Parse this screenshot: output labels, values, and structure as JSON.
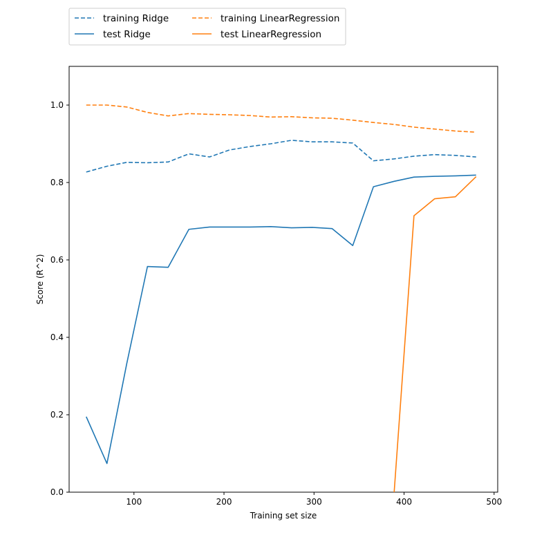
{
  "chart_data": {
    "type": "line",
    "xlabel": "Training set size",
    "ylabel": "Score (R^2)",
    "xlim": [
      28,
      504
    ],
    "ylim": [
      0,
      1.1
    ],
    "xticks": [
      100,
      200,
      300,
      400,
      500
    ],
    "yticks": [
      0.0,
      0.2,
      0.4,
      0.6,
      0.8,
      1.0
    ],
    "ytick_labels": [
      "0.0",
      "0.2",
      "0.4",
      "0.6",
      "0.8",
      "1.0"
    ],
    "legend_placement": "top-left, above the plot, 2 columns",
    "colors": {
      "Ridge": "#1f77b4",
      "LinearRegression": "#ff7f0e"
    },
    "series": [
      {
        "name": "training Ridge",
        "color": "#1f77b4",
        "dashed": true,
        "x": [
          47,
          70,
          92,
          115,
          138,
          161,
          184,
          206,
          229,
          252,
          275,
          298,
          320,
          343,
          366,
          389,
          411,
          434,
          457,
          480
        ],
        "y": [
          0.827,
          0.842,
          0.852,
          0.851,
          0.853,
          0.874,
          0.866,
          0.884,
          0.893,
          0.9,
          0.909,
          0.905,
          0.905,
          0.902,
          0.856,
          0.861,
          0.868,
          0.872,
          0.87,
          0.866
        ]
      },
      {
        "name": "test Ridge",
        "color": "#1f77b4",
        "dashed": false,
        "x": [
          47,
          70,
          92,
          115,
          138,
          161,
          184,
          206,
          229,
          252,
          275,
          298,
          320,
          343,
          366,
          389,
          411,
          434,
          457,
          480
        ],
        "y": [
          0.195,
          0.074,
          0.332,
          0.583,
          0.581,
          0.679,
          0.685,
          0.685,
          0.685,
          0.686,
          0.683,
          0.684,
          0.681,
          0.637,
          0.789,
          0.803,
          0.814,
          0.816,
          0.817,
          0.819
        ]
      },
      {
        "name": "training LinearRegression",
        "color": "#ff7f0e",
        "dashed": true,
        "x": [
          47,
          70,
          92,
          115,
          138,
          161,
          184,
          206,
          229,
          252,
          275,
          298,
          320,
          343,
          366,
          389,
          411,
          434,
          457,
          480
        ],
        "y": [
          1.0,
          1.0,
          0.995,
          0.981,
          0.972,
          0.978,
          0.976,
          0.975,
          0.973,
          0.969,
          0.97,
          0.967,
          0.966,
          0.961,
          0.955,
          0.95,
          0.943,
          0.938,
          0.933,
          0.93
        ]
      },
      {
        "name": "test LinearRegression",
        "color": "#ff7f0e",
        "dashed": false,
        "x": [
          389,
          411,
          434,
          457,
          480
        ],
        "y": [
          0.0,
          0.714,
          0.758,
          0.763,
          0.815
        ]
      }
    ]
  }
}
